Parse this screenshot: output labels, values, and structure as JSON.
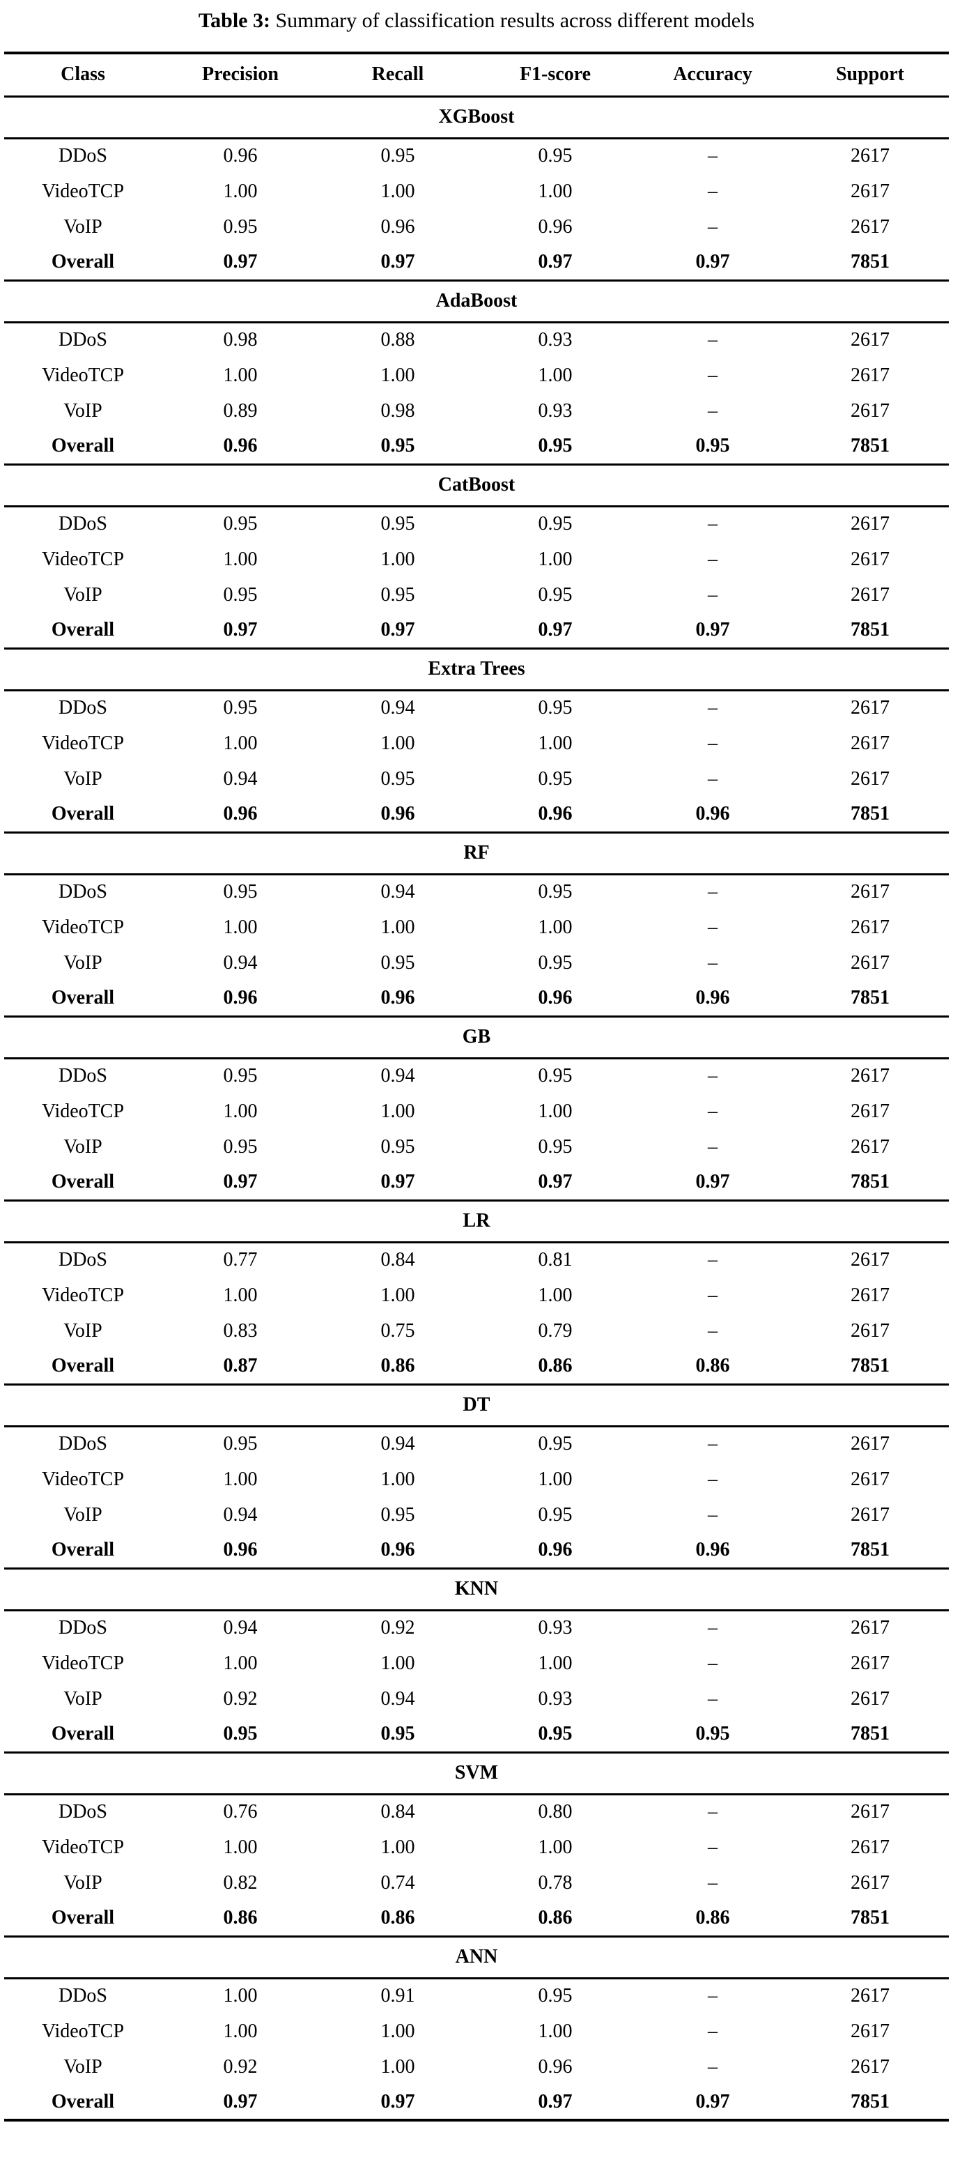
{
  "caption": {
    "label": "Table 3:",
    "text": " Summary of classification results across different models"
  },
  "table": {
    "columns": [
      "Class",
      "Precision",
      "Recall",
      "F1-score",
      "Accuracy",
      "Support"
    ],
    "column_keys": [
      "class",
      "precision",
      "recall",
      "f1-score",
      "accuracy",
      "support"
    ],
    "sections": [
      {
        "model": "XGBoost",
        "rows": [
          {
            "bold": false,
            "cells": [
              "DDoS",
              "0.96",
              "0.95",
              "0.95",
              "–",
              "2617"
            ]
          },
          {
            "bold": false,
            "cells": [
              "VideoTCP",
              "1.00",
              "1.00",
              "1.00",
              "–",
              "2617"
            ]
          },
          {
            "bold": false,
            "cells": [
              "VoIP",
              "0.95",
              "0.96",
              "0.96",
              "–",
              "2617"
            ]
          },
          {
            "bold": true,
            "cells": [
              "Overall",
              "0.97",
              "0.97",
              "0.97",
              "0.97",
              "7851"
            ]
          }
        ]
      },
      {
        "model": "AdaBoost",
        "rows": [
          {
            "bold": false,
            "cells": [
              "DDoS",
              "0.98",
              "0.88",
              "0.93",
              "–",
              "2617"
            ]
          },
          {
            "bold": false,
            "cells": [
              "VideoTCP",
              "1.00",
              "1.00",
              "1.00",
              "–",
              "2617"
            ]
          },
          {
            "bold": false,
            "cells": [
              "VoIP",
              "0.89",
              "0.98",
              "0.93",
              "–",
              "2617"
            ]
          },
          {
            "bold": true,
            "cells": [
              "Overall",
              "0.96",
              "0.95",
              "0.95",
              "0.95",
              "7851"
            ]
          }
        ]
      },
      {
        "model": "CatBoost",
        "rows": [
          {
            "bold": false,
            "cells": [
              "DDoS",
              "0.95",
              "0.95",
              "0.95",
              "–",
              "2617"
            ]
          },
          {
            "bold": false,
            "cells": [
              "VideoTCP",
              "1.00",
              "1.00",
              "1.00",
              "–",
              "2617"
            ]
          },
          {
            "bold": false,
            "cells": [
              "VoIP",
              "0.95",
              "0.95",
              "0.95",
              "–",
              "2617"
            ]
          },
          {
            "bold": true,
            "cells": [
              "Overall",
              "0.97",
              "0.97",
              "0.97",
              "0.97",
              "7851"
            ]
          }
        ]
      },
      {
        "model": "Extra Trees",
        "rows": [
          {
            "bold": false,
            "cells": [
              "DDoS",
              "0.95",
              "0.94",
              "0.95",
              "–",
              "2617"
            ]
          },
          {
            "bold": false,
            "cells": [
              "VideoTCP",
              "1.00",
              "1.00",
              "1.00",
              "–",
              "2617"
            ]
          },
          {
            "bold": false,
            "cells": [
              "VoIP",
              "0.94",
              "0.95",
              "0.95",
              "–",
              "2617"
            ]
          },
          {
            "bold": true,
            "cells": [
              "Overall",
              "0.96",
              "0.96",
              "0.96",
              "0.96",
              "7851"
            ]
          }
        ]
      },
      {
        "model": "RF",
        "rows": [
          {
            "bold": false,
            "cells": [
              "DDoS",
              "0.95",
              "0.94",
              "0.95",
              "–",
              "2617"
            ]
          },
          {
            "bold": false,
            "cells": [
              "VideoTCP",
              "1.00",
              "1.00",
              "1.00",
              "–",
              "2617"
            ]
          },
          {
            "bold": false,
            "cells": [
              "VoIP",
              "0.94",
              "0.95",
              "0.95",
              "–",
              "2617"
            ]
          },
          {
            "bold": true,
            "cells": [
              "Overall",
              "0.96",
              "0.96",
              "0.96",
              "0.96",
              "7851"
            ]
          }
        ]
      },
      {
        "model": "GB",
        "rows": [
          {
            "bold": false,
            "cells": [
              "DDoS",
              "0.95",
              "0.94",
              "0.95",
              "–",
              "2617"
            ]
          },
          {
            "bold": false,
            "cells": [
              "VideoTCP",
              "1.00",
              "1.00",
              "1.00",
              "–",
              "2617"
            ]
          },
          {
            "bold": false,
            "cells": [
              "VoIP",
              "0.95",
              "0.95",
              "0.95",
              "–",
              "2617"
            ]
          },
          {
            "bold": true,
            "cells": [
              "Overall",
              "0.97",
              "0.97",
              "0.97",
              "0.97",
              "7851"
            ]
          }
        ]
      },
      {
        "model": "LR",
        "rows": [
          {
            "bold": false,
            "cells": [
              "DDoS",
              "0.77",
              "0.84",
              "0.81",
              "–",
              "2617"
            ]
          },
          {
            "bold": false,
            "cells": [
              "VideoTCP",
              "1.00",
              "1.00",
              "1.00",
              "–",
              "2617"
            ]
          },
          {
            "bold": false,
            "cells": [
              "VoIP",
              "0.83",
              "0.75",
              "0.79",
              "–",
              "2617"
            ]
          },
          {
            "bold": true,
            "cells": [
              "Overall",
              "0.87",
              "0.86",
              "0.86",
              "0.86",
              "7851"
            ]
          }
        ]
      },
      {
        "model": "DT",
        "rows": [
          {
            "bold": false,
            "cells": [
              "DDoS",
              "0.95",
              "0.94",
              "0.95",
              "–",
              "2617"
            ]
          },
          {
            "bold": false,
            "cells": [
              "VideoTCP",
              "1.00",
              "1.00",
              "1.00",
              "–",
              "2617"
            ]
          },
          {
            "bold": false,
            "cells": [
              "VoIP",
              "0.94",
              "0.95",
              "0.95",
              "–",
              "2617"
            ]
          },
          {
            "bold": true,
            "cells": [
              "Overall",
              "0.96",
              "0.96",
              "0.96",
              "0.96",
              "7851"
            ]
          }
        ]
      },
      {
        "model": "KNN",
        "rows": [
          {
            "bold": false,
            "cells": [
              "DDoS",
              "0.94",
              "0.92",
              "0.93",
              "–",
              "2617"
            ]
          },
          {
            "bold": false,
            "cells": [
              "VideoTCP",
              "1.00",
              "1.00",
              "1.00",
              "–",
              "2617"
            ]
          },
          {
            "bold": false,
            "cells": [
              "VoIP",
              "0.92",
              "0.94",
              "0.93",
              "–",
              "2617"
            ]
          },
          {
            "bold": true,
            "cells": [
              "Overall",
              "0.95",
              "0.95",
              "0.95",
              "0.95",
              "7851"
            ]
          }
        ]
      },
      {
        "model": "SVM",
        "rows": [
          {
            "bold": false,
            "cells": [
              "DDoS",
              "0.76",
              "0.84",
              "0.80",
              "–",
              "2617"
            ]
          },
          {
            "bold": false,
            "cells": [
              "VideoTCP",
              "1.00",
              "1.00",
              "1.00",
              "–",
              "2617"
            ]
          },
          {
            "bold": false,
            "cells": [
              "VoIP",
              "0.82",
              "0.74",
              "0.78",
              "–",
              "2617"
            ]
          },
          {
            "bold": true,
            "cells": [
              "Overall",
              "0.86",
              "0.86",
              "0.86",
              "0.86",
              "7851"
            ]
          }
        ]
      },
      {
        "model": "ANN",
        "rows": [
          {
            "bold": false,
            "cells": [
              "DDoS",
              "1.00",
              "0.91",
              "0.95",
              "–",
              "2617"
            ]
          },
          {
            "bold": false,
            "cells": [
              "VideoTCP",
              "1.00",
              "1.00",
              "1.00",
              "–",
              "2617"
            ]
          },
          {
            "bold": false,
            "cells": [
              "VoIP",
              "0.92",
              "1.00",
              "0.96",
              "–",
              "2617"
            ]
          },
          {
            "bold": true,
            "cells": [
              "Overall",
              "0.97",
              "0.97",
              "0.97",
              "0.97",
              "7851"
            ]
          }
        ]
      }
    ]
  }
}
